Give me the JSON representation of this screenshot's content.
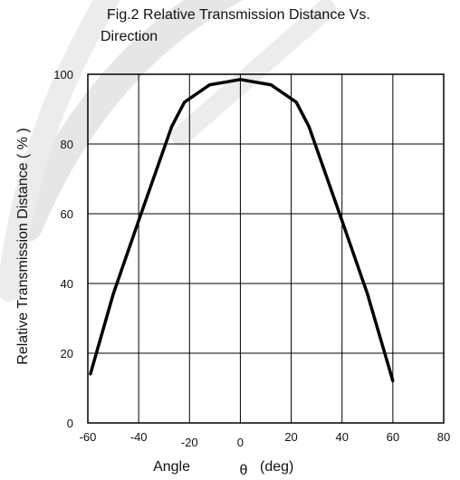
{
  "chart_data": {
    "type": "line",
    "title_lines": [
      "Fig.2 Relative Transmission Distance Vs.",
      "Direction"
    ],
    "xlabel": "Angle",
    "xlabel_symbol": "θ",
    "xlabel_unit": "(deg)",
    "ylabel": "Relative Transmission Distance ( % )",
    "xlim": [
      -60,
      80
    ],
    "ylim": [
      0,
      100
    ],
    "xticks": [
      -60,
      -40,
      -20,
      0,
      20,
      40,
      60,
      80
    ],
    "yticks": [
      0,
      20,
      40,
      60,
      80,
      100
    ],
    "grid": true,
    "legend": "none",
    "line_color": "#000000",
    "series": [
      {
        "x": [
          -59,
          -50,
          -40,
          -27,
          -22,
          -12,
          0,
          12,
          22,
          27,
          40,
          50,
          60
        ],
        "y": [
          14,
          37,
          58,
          85,
          92,
          97,
          98.5,
          97,
          92,
          85,
          58,
          37,
          12
        ]
      }
    ]
  }
}
